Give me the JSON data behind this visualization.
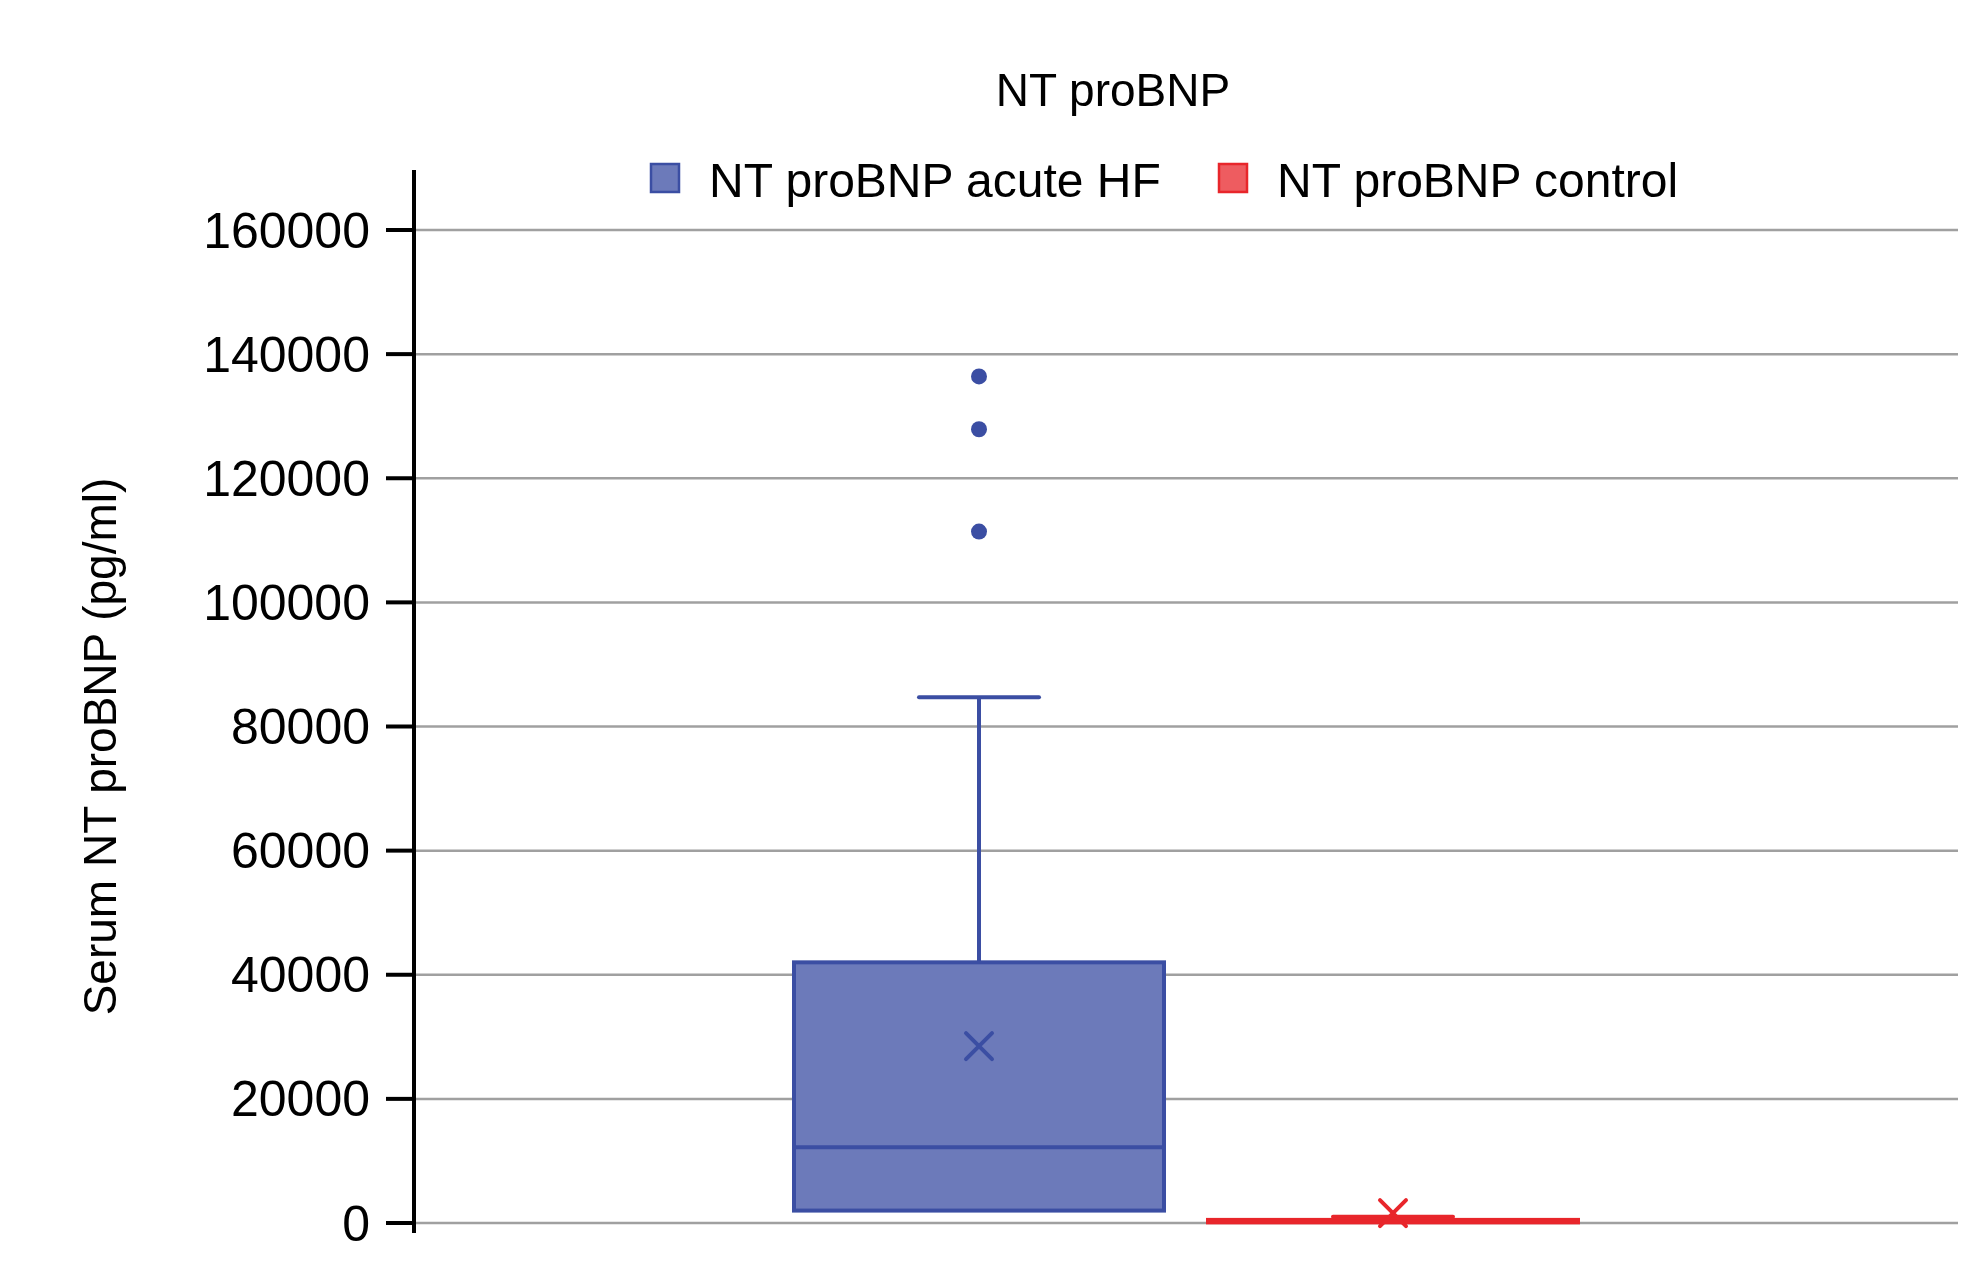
{
  "chart_data": {
    "type": "box",
    "title": "NT proBNP",
    "ylabel": "Serum NT proBNP (pg/ml)",
    "categories": [
      null
    ],
    "ylim": [
      0,
      160000
    ],
    "yticks": [
      0,
      20000,
      40000,
      60000,
      80000,
      100000,
      120000,
      140000,
      160000
    ],
    "grid": "y",
    "legend": "top",
    "series": [
      {
        "name": "NT proBNP acute HF",
        "color": "#3b4ea3",
        "boxes": [
          {
            "q1": 2000,
            "median": 12200,
            "q3": 42000,
            "high": 84700,
            "mean": 28500,
            "outliers": [
              111400,
              127900,
              136400
            ]
          }
        ]
      },
      {
        "name": "NT proBNP control",
        "color": "#e8262b",
        "boxes": [
          {
            "q1": 100,
            "median": 200,
            "q3": 500,
            "high": 1000,
            "mean": 1600
          }
        ]
      }
    ]
  }
}
